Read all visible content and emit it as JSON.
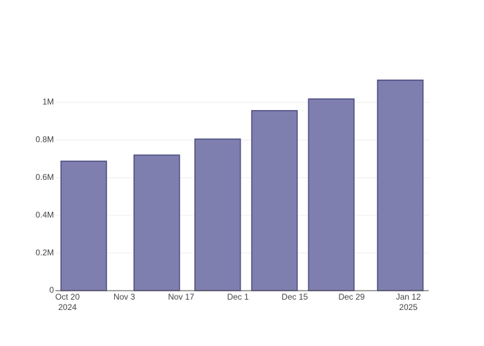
{
  "chart_data": {
    "type": "bar",
    "x": [
      "2024-10-24",
      "2024-11-11",
      "2024-11-26",
      "2024-12-10",
      "2024-12-24",
      "2025-01-10"
    ],
    "values": [
      687500,
      720000,
      805000,
      956000,
      1018000,
      1118000
    ],
    "color": "#7f7faf",
    "edge_color": "#4a4a80",
    "xlim": [
      "2024-10-17",
      "2025-01-17"
    ],
    "xticks": [
      {
        "value": "2024-10-20",
        "label": "Oct 20\n2024"
      },
      {
        "value": "2024-11-03",
        "label": "Nov 3"
      },
      {
        "value": "2024-11-17",
        "label": "Nov 17"
      },
      {
        "value": "2024-12-01",
        "label": "Dec 1"
      },
      {
        "value": "2024-12-15",
        "label": "Dec 15"
      },
      {
        "value": "2024-12-29",
        "label": "Dec 29"
      },
      {
        "value": "2025-01-12",
        "label": "Jan 12\n2025"
      }
    ],
    "ylim": [
      0,
      1176000
    ],
    "yticks": [
      0,
      {
        "value": 200000,
        "label": "0.2M"
      },
      {
        "value": 400000,
        "label": "0.4M"
      },
      {
        "value": 600000,
        "label": "0.6M"
      },
      {
        "value": 800000,
        "label": "0.8M"
      },
      {
        "value": 1000000,
        "label": "1M"
      }
    ],
    "grid": true
  }
}
